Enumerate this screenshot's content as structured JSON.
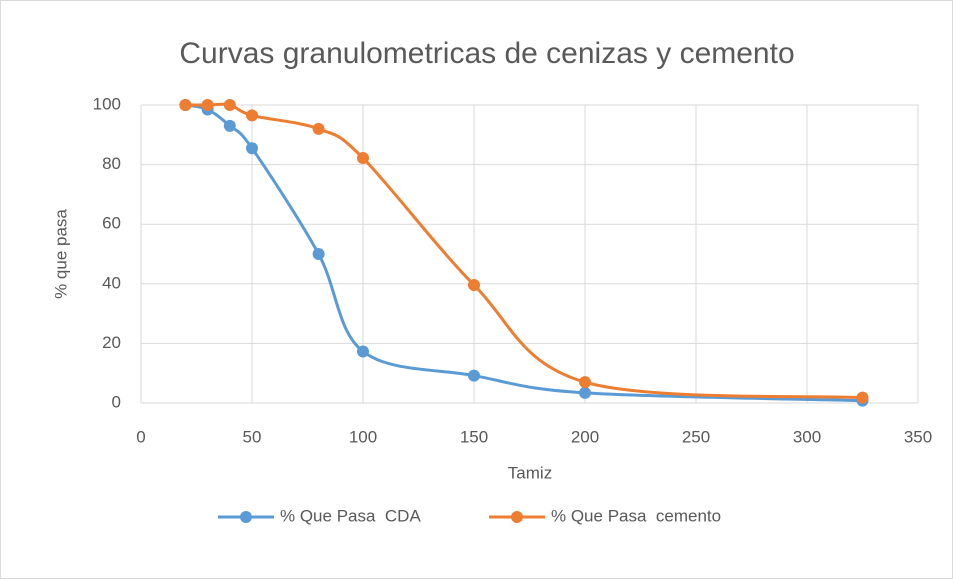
{
  "chart_data": {
    "type": "line",
    "title": "Curvas granulometricas de cenizas y cemento",
    "x_label": "Tamiz",
    "y_label": "% que pasa",
    "x": [
      20,
      30,
      40,
      50,
      80,
      100,
      150,
      200,
      325
    ],
    "series": [
      {
        "name": "% Que Pasa  CDA",
        "color": "#5b9bd5",
        "values": [
          100,
          98.5,
          93,
          85.5,
          50,
          17.3,
          9.2,
          3.4,
          0.8
        ]
      },
      {
        "name": "% Que Pasa  cemento",
        "color": "#ed7d31",
        "values": [
          100,
          100,
          100,
          96.5,
          92,
          82.2,
          39.6,
          7,
          1.8
        ]
      }
    ],
    "xlim": [
      0,
      350
    ],
    "xticks": [
      0,
      50,
      100,
      150,
      200,
      250,
      300,
      350
    ],
    "ylim": [
      0,
      100
    ],
    "yticks": [
      0,
      20,
      40,
      60,
      80,
      100
    ],
    "grid": true,
    "smooth": true,
    "legend": "bottom"
  }
}
